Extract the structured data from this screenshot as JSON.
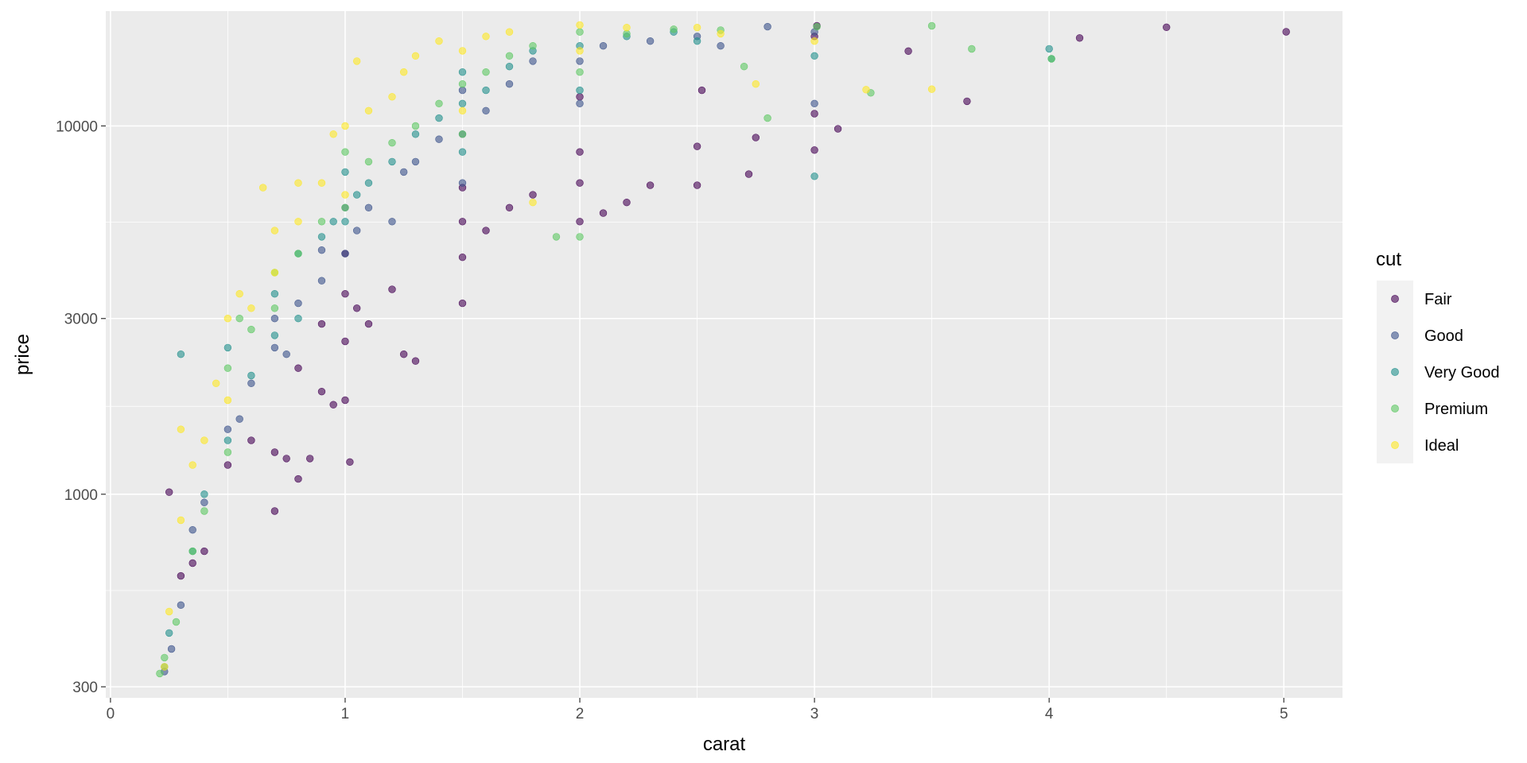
{
  "chart_data": {
    "type": "scatter",
    "title": "",
    "xlabel": "carat",
    "ylabel": "price",
    "x_scale": "linear",
    "y_scale": "log10",
    "xlim": [
      -0.02,
      5.25
    ],
    "ylim": [
      280,
      20500
    ],
    "x_ticks": [
      0,
      1,
      2,
      3,
      4,
      5
    ],
    "x_tick_labels": [
      "0",
      "1",
      "2",
      "3",
      "4",
      "5"
    ],
    "y_ticks": [
      300,
      1000,
      3000,
      10000
    ],
    "y_tick_labels": [
      "300",
      "1000",
      "3000",
      "10000"
    ],
    "grid": true,
    "panel_background": "#ebebeb",
    "grid_color": "#ffffff",
    "point_alpha": 0.6,
    "legend": {
      "title": "cut",
      "position": "right",
      "entries": [
        "Fair",
        "Good",
        "Very Good",
        "Premium",
        "Ideal"
      ]
    },
    "series": [
      {
        "name": "Fair",
        "color": "#440154",
        "points": [
          [
            0.25,
            1013
          ],
          [
            0.3,
            600
          ],
          [
            0.35,
            650
          ],
          [
            0.4,
            700
          ],
          [
            0.5,
            1200
          ],
          [
            0.6,
            1400
          ],
          [
            0.7,
            900
          ],
          [
            0.7,
            1300
          ],
          [
            0.75,
            1250
          ],
          [
            0.8,
            1100
          ],
          [
            0.8,
            2200
          ],
          [
            0.85,
            1250
          ],
          [
            0.9,
            1900
          ],
          [
            0.9,
            2900
          ],
          [
            0.95,
            1750
          ],
          [
            1.0,
            1800
          ],
          [
            1.0,
            2600
          ],
          [
            1.0,
            3500
          ],
          [
            1.0,
            4500
          ],
          [
            1.02,
            1223
          ],
          [
            1.05,
            3200
          ],
          [
            1.1,
            2900
          ],
          [
            1.2,
            3600
          ],
          [
            1.25,
            2400
          ],
          [
            1.3,
            2300
          ],
          [
            1.5,
            3300
          ],
          [
            1.5,
            4400
          ],
          [
            1.5,
            5500
          ],
          [
            1.5,
            6800
          ],
          [
            1.6,
            5200
          ],
          [
            1.7,
            6000
          ],
          [
            1.8,
            6500
          ],
          [
            2.0,
            5500
          ],
          [
            2.0,
            7000
          ],
          [
            2.0,
            8500
          ],
          [
            2.0,
            12000
          ],
          [
            2.1,
            5800
          ],
          [
            2.2,
            6200
          ],
          [
            2.3,
            6900
          ],
          [
            2.5,
            6900
          ],
          [
            2.5,
            8800
          ],
          [
            2.52,
            12500
          ],
          [
            2.72,
            7400
          ],
          [
            2.75,
            9300
          ],
          [
            3.0,
            8600
          ],
          [
            3.0,
            10800
          ],
          [
            3.0,
            17500
          ],
          [
            3.01,
            18700
          ],
          [
            3.1,
            9820
          ],
          [
            3.4,
            15964
          ],
          [
            3.65,
            11668
          ],
          [
            4.13,
            17329
          ],
          [
            4.5,
            18531
          ],
          [
            5.01,
            18018
          ]
        ]
      },
      {
        "name": "Good",
        "color": "#3b528b",
        "points": [
          [
            0.23,
            330
          ],
          [
            0.26,
            380
          ],
          [
            0.3,
            500
          ],
          [
            0.35,
            800
          ],
          [
            0.4,
            950
          ],
          [
            0.5,
            1500
          ],
          [
            0.55,
            1600
          ],
          [
            0.6,
            2000
          ],
          [
            0.7,
            2500
          ],
          [
            0.7,
            3000
          ],
          [
            0.75,
            2400
          ],
          [
            0.8,
            3300
          ],
          [
            0.9,
            3800
          ],
          [
            0.9,
            4600
          ],
          [
            1.0,
            4500
          ],
          [
            1.0,
            6000
          ],
          [
            1.05,
            5200
          ],
          [
            1.1,
            6000
          ],
          [
            1.2,
            5500
          ],
          [
            1.25,
            7500
          ],
          [
            1.3,
            8000
          ],
          [
            1.4,
            9200
          ],
          [
            1.5,
            7000
          ],
          [
            1.5,
            9500
          ],
          [
            1.5,
            12500
          ],
          [
            1.6,
            11000
          ],
          [
            1.7,
            13000
          ],
          [
            1.8,
            15000
          ],
          [
            2.0,
            11500
          ],
          [
            2.0,
            15000
          ],
          [
            2.1,
            16500
          ],
          [
            2.3,
            17000
          ],
          [
            2.5,
            17500
          ],
          [
            2.6,
            16500
          ],
          [
            2.8,
            18600
          ],
          [
            3.0,
            11500
          ],
          [
            3.0,
            18000
          ]
        ]
      },
      {
        "name": "Very Good",
        "color": "#21908c",
        "points": [
          [
            0.23,
            340
          ],
          [
            0.25,
            420
          ],
          [
            0.3,
            2400
          ],
          [
            0.35,
            700
          ],
          [
            0.4,
            1000
          ],
          [
            0.5,
            1400
          ],
          [
            0.5,
            2500
          ],
          [
            0.6,
            2100
          ],
          [
            0.7,
            2700
          ],
          [
            0.7,
            3500
          ],
          [
            0.8,
            3000
          ],
          [
            0.8,
            4500
          ],
          [
            0.9,
            5000
          ],
          [
            0.95,
            5500
          ],
          [
            1.0,
            5500
          ],
          [
            1.0,
            7500
          ],
          [
            1.05,
            6500
          ],
          [
            1.1,
            7000
          ],
          [
            1.2,
            8000
          ],
          [
            1.3,
            9500
          ],
          [
            1.4,
            10500
          ],
          [
            1.5,
            8500
          ],
          [
            1.5,
            11500
          ],
          [
            1.5,
            14000
          ],
          [
            1.6,
            12500
          ],
          [
            1.7,
            14500
          ],
          [
            1.8,
            16000
          ],
          [
            2.0,
            12500
          ],
          [
            2.0,
            16500
          ],
          [
            2.2,
            17500
          ],
          [
            2.4,
            18000
          ],
          [
            2.5,
            17000
          ],
          [
            3.0,
            7300
          ],
          [
            3.0,
            15500
          ],
          [
            4.0,
            16200
          ],
          [
            4.01,
            15223
          ]
        ]
      },
      {
        "name": "Premium",
        "color": "#5dc863",
        "points": [
          [
            0.21,
            326
          ],
          [
            0.23,
            360
          ],
          [
            0.28,
            450
          ],
          [
            0.35,
            700
          ],
          [
            0.4,
            900
          ],
          [
            0.5,
            1300
          ],
          [
            0.5,
            2200
          ],
          [
            0.55,
            3000
          ],
          [
            0.6,
            2800
          ],
          [
            0.7,
            3200
          ],
          [
            0.7,
            4000
          ],
          [
            0.8,
            4500
          ],
          [
            0.9,
            5500
          ],
          [
            1.0,
            6000
          ],
          [
            1.0,
            8500
          ],
          [
            1.1,
            8000
          ],
          [
            1.2,
            9000
          ],
          [
            1.3,
            10000
          ],
          [
            1.4,
            11500
          ],
          [
            1.5,
            9500
          ],
          [
            1.5,
            13000
          ],
          [
            1.6,
            14000
          ],
          [
            1.7,
            15500
          ],
          [
            1.8,
            16500
          ],
          [
            1.9,
            5000
          ],
          [
            2.0,
            5000
          ],
          [
            2.0,
            14000
          ],
          [
            2.0,
            18000
          ],
          [
            2.2,
            17800
          ],
          [
            2.4,
            18300
          ],
          [
            2.6,
            18200
          ],
          [
            2.7,
            14500
          ],
          [
            2.8,
            10500
          ],
          [
            3.01,
            18600
          ],
          [
            3.24,
            12300
          ],
          [
            3.5,
            18701
          ],
          [
            3.67,
            16193
          ],
          [
            4.01,
            15223
          ]
        ]
      },
      {
        "name": "Ideal",
        "color": "#fde725",
        "points": [
          [
            0.23,
            340
          ],
          [
            0.25,
            480
          ],
          [
            0.3,
            850
          ],
          [
            0.3,
            1500
          ],
          [
            0.35,
            1200
          ],
          [
            0.4,
            1400
          ],
          [
            0.45,
            2000
          ],
          [
            0.5,
            1800
          ],
          [
            0.5,
            3000
          ],
          [
            0.55,
            3500
          ],
          [
            0.6,
            3200
          ],
          [
            0.65,
            6800
          ],
          [
            0.7,
            4000
          ],
          [
            0.7,
            5200
          ],
          [
            0.8,
            5500
          ],
          [
            0.8,
            7000
          ],
          [
            0.9,
            7000
          ],
          [
            0.95,
            9500
          ],
          [
            1.0,
            6500
          ],
          [
            1.0,
            10000
          ],
          [
            1.05,
            15000
          ],
          [
            1.1,
            11000
          ],
          [
            1.2,
            12000
          ],
          [
            1.25,
            14000
          ],
          [
            1.3,
            15500
          ],
          [
            1.4,
            17000
          ],
          [
            1.5,
            11000
          ],
          [
            1.5,
            16000
          ],
          [
            1.6,
            17500
          ],
          [
            1.7,
            18000
          ],
          [
            1.8,
            6200
          ],
          [
            2.0,
            16000
          ],
          [
            2.0,
            18800
          ],
          [
            2.2,
            18500
          ],
          [
            2.5,
            18500
          ],
          [
            2.6,
            17800
          ],
          [
            2.75,
            13000
          ],
          [
            3.0,
            17000
          ],
          [
            3.22,
            12545
          ],
          [
            3.5,
            12587
          ]
        ]
      }
    ]
  }
}
